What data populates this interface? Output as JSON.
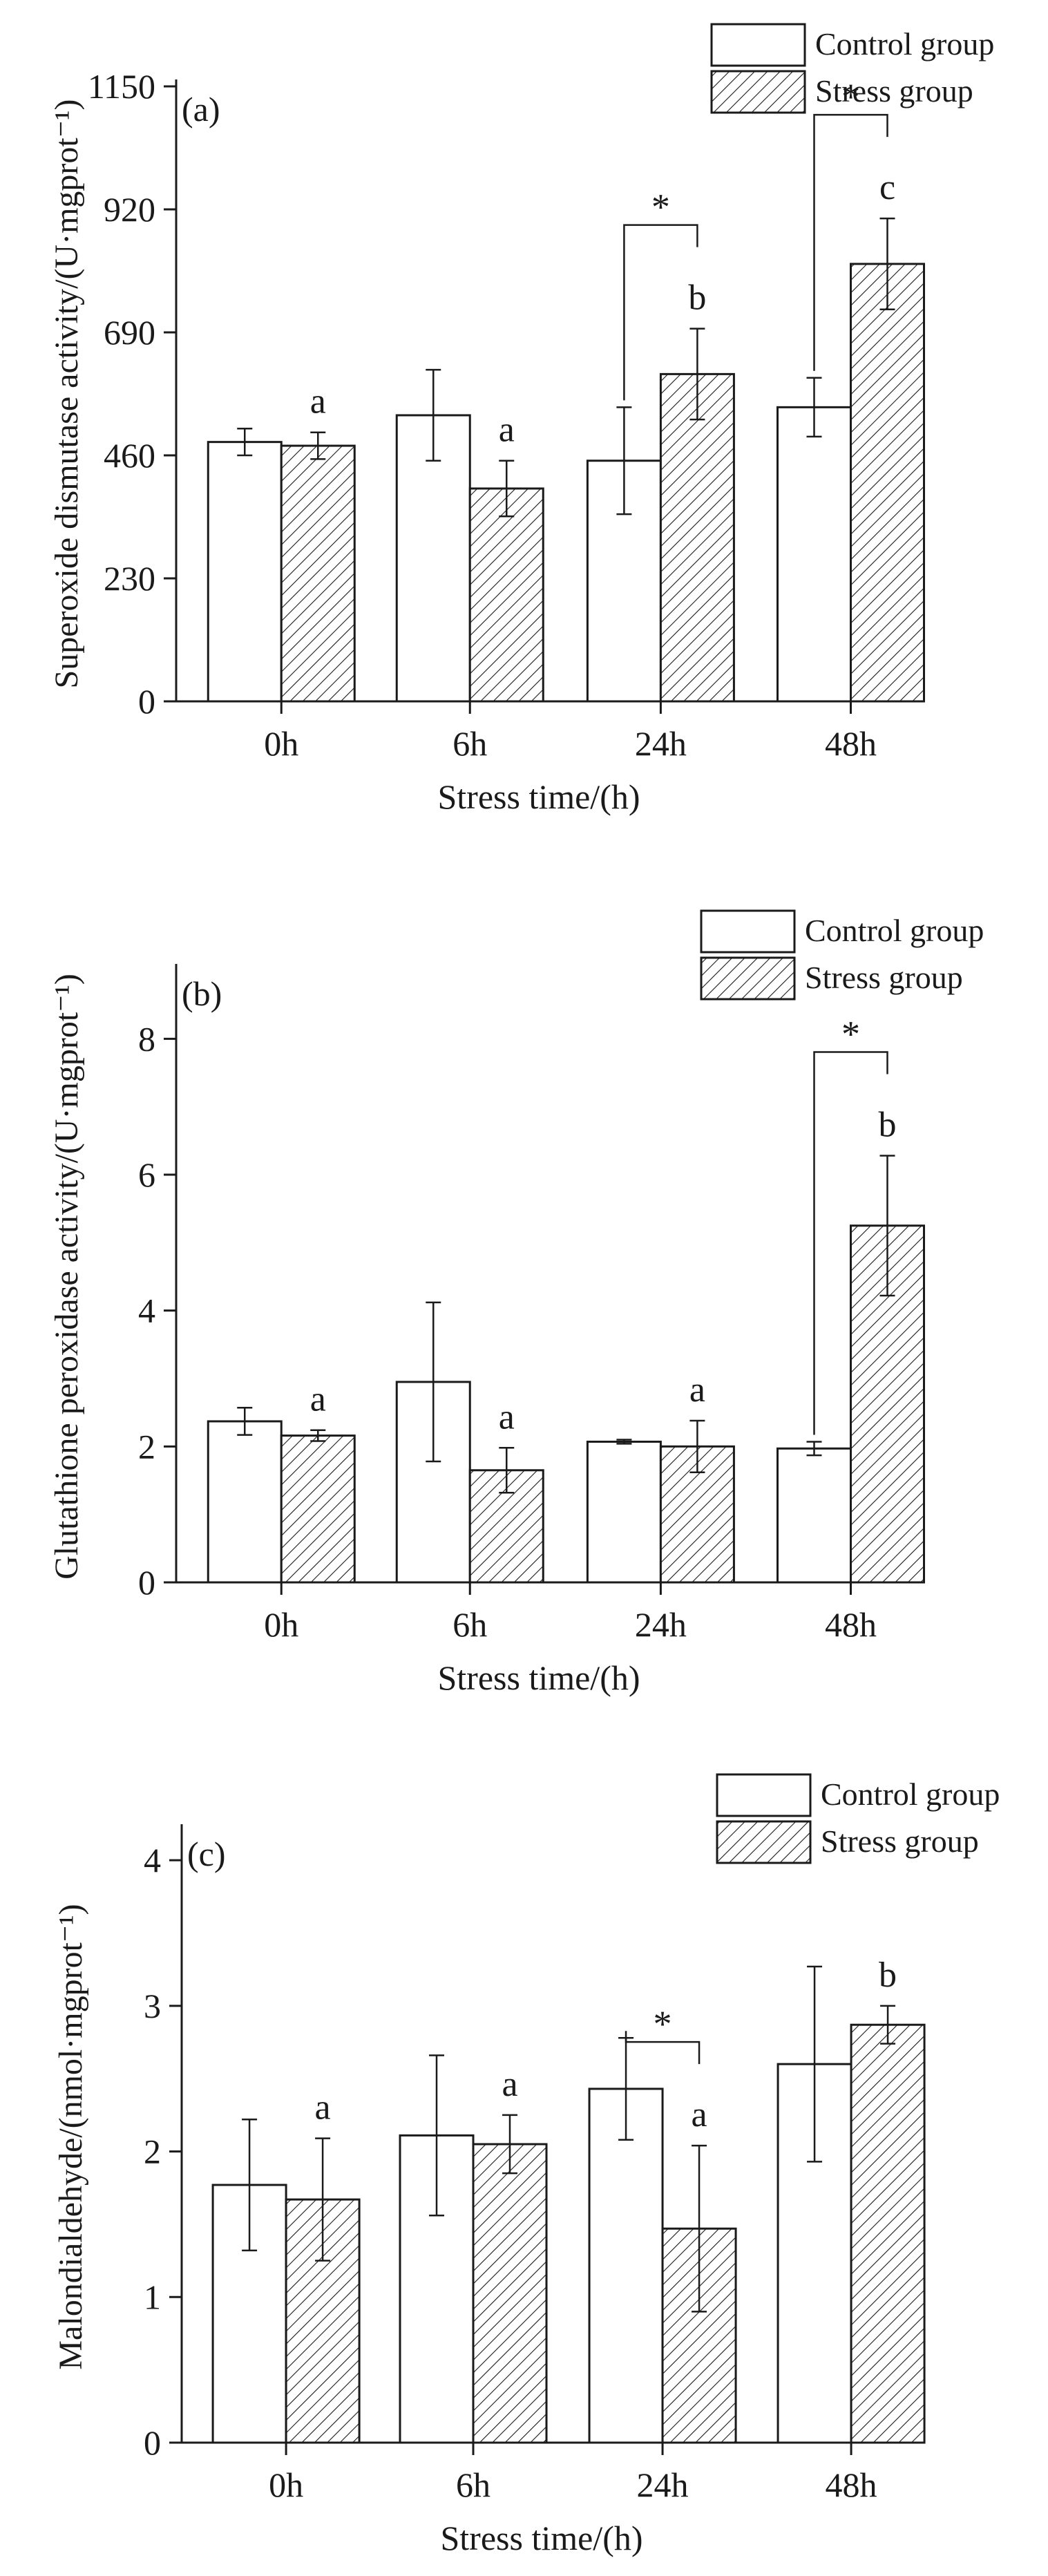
{
  "colors": {
    "ink": "#1a1a1a",
    "background": "#ffffff",
    "control_fill": "#ffffff"
  },
  "legend": {
    "control": "Control group",
    "stress": "Stress group"
  },
  "chart_data": [
    {
      "type": "bar",
      "panel_label": "(a)",
      "ylabel": "Superoxide dismutase activity/(U·mgprot⁻¹)",
      "xlabel": "Stress time/(h)",
      "categories": [
        "0h",
        "6h",
        "24h",
        "48h"
      ],
      "ylim": [
        0,
        1150
      ],
      "yticks": [
        "0",
        "230",
        "460",
        "690",
        "920",
        "1150"
      ],
      "grid": false,
      "legend_position": "top-right",
      "series": [
        {
          "name": "Control group",
          "values": [
            485,
            535,
            450,
            550
          ],
          "errors": [
            25,
            85,
            100,
            55
          ]
        },
        {
          "name": "Stress group",
          "values": [
            478,
            398,
            612,
            818
          ],
          "errors": [
            25,
            52,
            85,
            85
          ]
        }
      ],
      "letters": [
        "a",
        "a",
        "b",
        "c"
      ],
      "significance": [
        {
          "category": "24h",
          "label": "*"
        },
        {
          "category": "48h",
          "label": "*"
        }
      ]
    },
    {
      "type": "bar",
      "panel_label": "(b)",
      "ylabel": "Glutathione peroxidase activity/(U·mgprot⁻¹)",
      "xlabel": "Stress time/(h)",
      "categories": [
        "0h",
        "6h",
        "24h",
        "48h"
      ],
      "ylim": [
        0,
        9
      ],
      "yticks": [
        "0",
        "2",
        "4",
        "6",
        "8"
      ],
      "grid": false,
      "legend_position": "top-right",
      "series": [
        {
          "name": "Control group",
          "values": [
            2.37,
            2.95,
            2.07,
            1.97
          ],
          "errors": [
            0.2,
            1.17,
            0.03,
            0.1
          ]
        },
        {
          "name": "Stress group",
          "values": [
            2.16,
            1.65,
            2.0,
            5.25
          ],
          "errors": [
            0.08,
            0.33,
            0.38,
            1.03
          ]
        }
      ],
      "letters": [
        "a",
        "a",
        "a",
        "b"
      ],
      "significance": [
        {
          "category": "48h",
          "label": "*"
        }
      ]
    },
    {
      "type": "bar",
      "panel_label": "(c)",
      "ylabel": "Malondialdehyde/(nmol·mgprot⁻¹)",
      "xlabel": "Stress time/(h)",
      "categories": [
        "0h",
        "6h",
        "24h",
        "48h"
      ],
      "ylim": [
        0,
        4.2
      ],
      "yticks": [
        "0",
        "1",
        "2",
        "3",
        "4"
      ],
      "grid": false,
      "legend_position": "top-right",
      "series": [
        {
          "name": "Control group",
          "values": [
            1.77,
            2.11,
            2.43,
            2.6
          ],
          "errors": [
            0.45,
            0.55,
            0.35,
            0.67
          ]
        },
        {
          "name": "Stress group",
          "values": [
            1.67,
            2.05,
            1.47,
            2.87
          ],
          "errors": [
            0.42,
            0.2,
            0.57,
            0.13
          ]
        }
      ],
      "letters": [
        "a",
        "a",
        "a",
        "b"
      ],
      "significance": [
        {
          "category": "24h",
          "label": "*"
        }
      ]
    }
  ]
}
